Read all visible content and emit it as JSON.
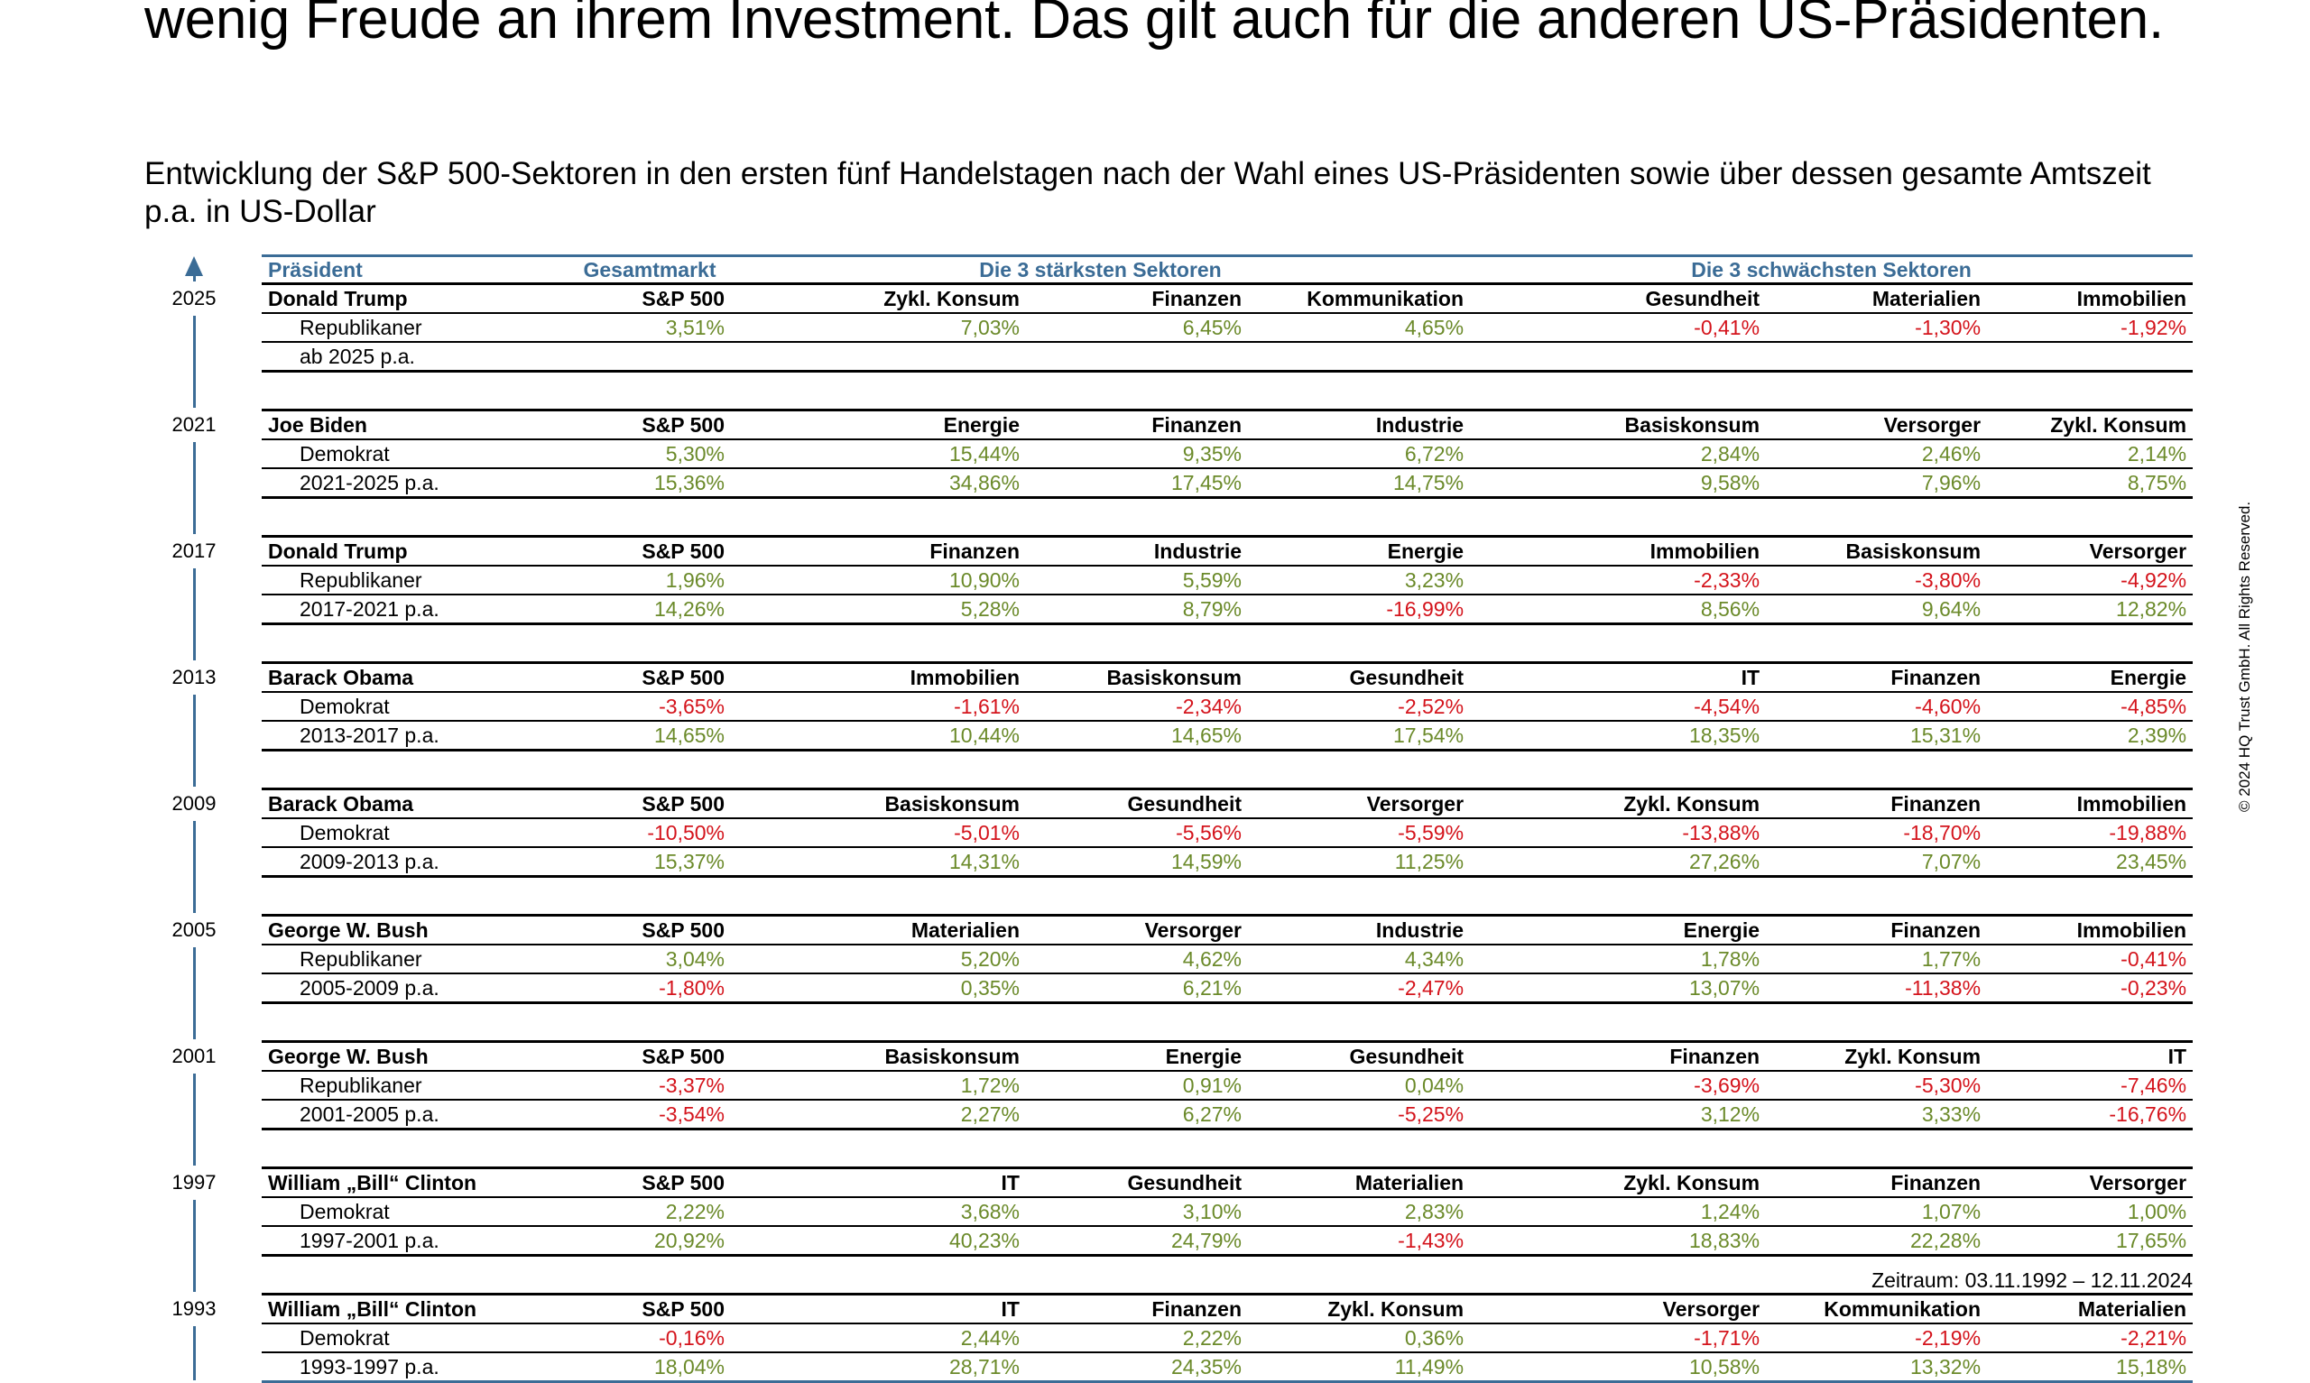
{
  "headline": "wenig Freude an ihrem Investment. Das gilt auch für die anderen US-Präsidenten.",
  "subtitle": "Entwicklung der S&P 500-Sektoren in den ersten fünf Handelstagen nach der Wahl eines US-Präsidenten sowie über dessen gesamte Amtszeit p.a. in US-Dollar",
  "table": {
    "headers": {
      "president": "Präsident",
      "market": "Gesamtmarkt",
      "strongest": "Die 3 stärksten Sektoren",
      "weakest": "Die 3 schwächsten Sektoren"
    },
    "blocks": [
      {
        "year": "2025",
        "name": "Donald Trump",
        "sectors": [
          "S&P 500",
          "Zykl. Konsum",
          "Finanzen",
          "Kommunikation",
          "Gesundheit",
          "Materialien",
          "Immobilien"
        ],
        "party": "Republikaner",
        "five_day": [
          "3,51%",
          "7,03%",
          "6,45%",
          "4,65%",
          "-0,41%",
          "-1,30%",
          "-1,92%"
        ],
        "period": "ab 2025 p.a.",
        "term": [
          "",
          "",
          "",
          "",
          "",
          "",
          ""
        ]
      },
      {
        "year": "2021",
        "name": "Joe Biden",
        "sectors": [
          "S&P 500",
          "Energie",
          "Finanzen",
          "Industrie",
          "Basiskonsum",
          "Versorger",
          "Zykl. Konsum"
        ],
        "party": "Demokrat",
        "five_day": [
          "5,30%",
          "15,44%",
          "9,35%",
          "6,72%",
          "2,84%",
          "2,46%",
          "2,14%"
        ],
        "period": "2021-2025 p.a.",
        "term": [
          "15,36%",
          "34,86%",
          "17,45%",
          "14,75%",
          "9,58%",
          "7,96%",
          "8,75%"
        ]
      },
      {
        "year": "2017",
        "name": "Donald Trump",
        "sectors": [
          "S&P 500",
          "Finanzen",
          "Industrie",
          "Energie",
          "Immobilien",
          "Basiskonsum",
          "Versorger"
        ],
        "party": "Republikaner",
        "five_day": [
          "1,96%",
          "10,90%",
          "5,59%",
          "3,23%",
          "-2,33%",
          "-3,80%",
          "-4,92%"
        ],
        "period": "2017-2021 p.a.",
        "term": [
          "14,26%",
          "5,28%",
          "8,79%",
          "-16,99%",
          "8,56%",
          "9,64%",
          "12,82%"
        ]
      },
      {
        "year": "2013",
        "name": "Barack Obama",
        "sectors": [
          "S&P 500",
          "Immobilien",
          "Basiskonsum",
          "Gesundheit",
          "IT",
          "Finanzen",
          "Energie"
        ],
        "party": "Demokrat",
        "five_day": [
          "-3,65%",
          "-1,61%",
          "-2,34%",
          "-2,52%",
          "-4,54%",
          "-4,60%",
          "-4,85%"
        ],
        "period": "2013-2017 p.a.",
        "term": [
          "14,65%",
          "10,44%",
          "14,65%",
          "17,54%",
          "18,35%",
          "15,31%",
          "2,39%"
        ]
      },
      {
        "year": "2009",
        "name": "Barack Obama",
        "sectors": [
          "S&P 500",
          "Basiskonsum",
          "Gesundheit",
          "Versorger",
          "Zykl. Konsum",
          "Finanzen",
          "Immobilien"
        ],
        "party": "Demokrat",
        "five_day": [
          "-10,50%",
          "-5,01%",
          "-5,56%",
          "-5,59%",
          "-13,88%",
          "-18,70%",
          "-19,88%"
        ],
        "period": "2009-2013 p.a.",
        "term": [
          "15,37%",
          "14,31%",
          "14,59%",
          "11,25%",
          "27,26%",
          "7,07%",
          "23,45%"
        ]
      },
      {
        "year": "2005",
        "name": "George W. Bush",
        "sectors": [
          "S&P 500",
          "Materialien",
          "Versorger",
          "Industrie",
          "Energie",
          "Finanzen",
          "Immobilien"
        ],
        "party": "Republikaner",
        "five_day": [
          "3,04%",
          "5,20%",
          "4,62%",
          "4,34%",
          "1,78%",
          "1,77%",
          "-0,41%"
        ],
        "period": "2005-2009 p.a.",
        "term": [
          "-1,80%",
          "0,35%",
          "6,21%",
          "-2,47%",
          "13,07%",
          "-11,38%",
          "-0,23%"
        ]
      },
      {
        "year": "2001",
        "name": "George W. Bush",
        "sectors": [
          "S&P 500",
          "Basiskonsum",
          "Energie",
          "Gesundheit",
          "Finanzen",
          "Zykl. Konsum",
          "IT"
        ],
        "party": "Republikaner",
        "five_day": [
          "-3,37%",
          "1,72%",
          "0,91%",
          "0,04%",
          "-3,69%",
          "-5,30%",
          "-7,46%"
        ],
        "period": "2001-2005 p.a.",
        "term": [
          "-3,54%",
          "2,27%",
          "6,27%",
          "-5,25%",
          "3,12%",
          "3,33%",
          "-16,76%"
        ]
      },
      {
        "year": "1997",
        "name": "William „Bill“ Clinton",
        "sectors": [
          "S&P 500",
          "IT",
          "Gesundheit",
          "Materialien",
          "Zykl. Konsum",
          "Finanzen",
          "Versorger"
        ],
        "party": "Demokrat",
        "five_day": [
          "2,22%",
          "3,68%",
          "3,10%",
          "2,83%",
          "1,24%",
          "1,07%",
          "1,00%"
        ],
        "period": "1997-2001 p.a.",
        "term": [
          "20,92%",
          "40,23%",
          "24,79%",
          "-1,43%",
          "18,83%",
          "22,28%",
          "17,65%"
        ]
      },
      {
        "year": "1993",
        "name": "William „Bill“ Clinton",
        "sectors": [
          "S&P 500",
          "IT",
          "Finanzen",
          "Zykl. Konsum",
          "Versorger",
          "Kommunikation",
          "Materialien"
        ],
        "party": "Demokrat",
        "five_day": [
          "-0,16%",
          "2,44%",
          "2,22%",
          "0,36%",
          "-1,71%",
          "-2,19%",
          "-2,21%"
        ],
        "period": "1993-1997 p.a.",
        "term": [
          "18,04%",
          "28,71%",
          "24,35%",
          "11,49%",
          "10,58%",
          "13,32%",
          "15,18%"
        ]
      }
    ]
  },
  "copyright": "© 2024 HQ Trust GmbH. All Rights Reserved.",
  "footnote": "Zeitraum: 03.11.1992 – 12.11.2024"
}
